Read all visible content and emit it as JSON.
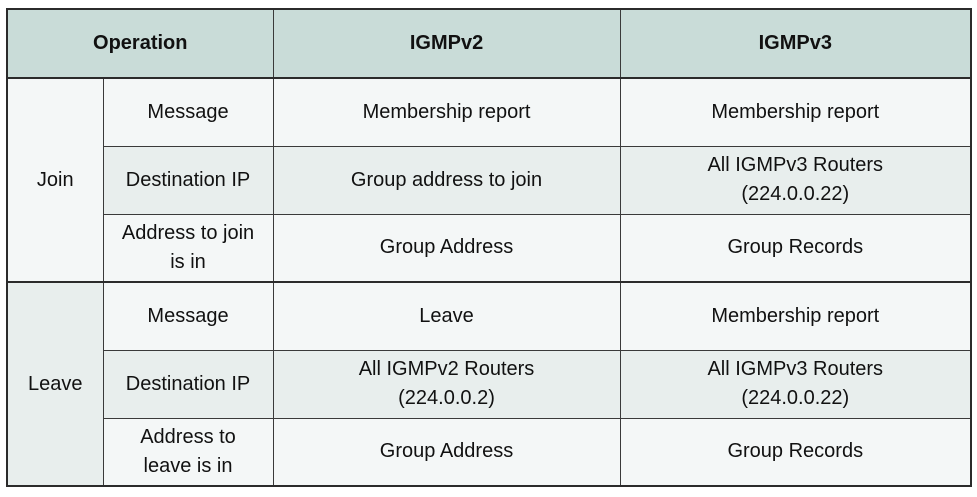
{
  "headers": {
    "operation": "Operation",
    "v2": "IGMPv2",
    "v3": "IGMPv3"
  },
  "groups": [
    {
      "operation": "Join",
      "rows": [
        {
          "field": [
            "Message"
          ],
          "v2": [
            "Membership report"
          ],
          "v3": [
            "Membership report"
          ]
        },
        {
          "field": [
            "Destination IP"
          ],
          "v2": [
            "Group address to join"
          ],
          "v3": [
            "All IGMPv3 Routers",
            "(224.0.0.22)"
          ]
        },
        {
          "field": [
            "Address to join",
            "is in"
          ],
          "v2": [
            "Group Address"
          ],
          "v3": [
            "Group Records"
          ]
        }
      ]
    },
    {
      "operation": "Leave",
      "rows": [
        {
          "field": [
            "Message"
          ],
          "v2": [
            "Leave"
          ],
          "v3": [
            "Membership report"
          ]
        },
        {
          "field": [
            "Destination IP"
          ],
          "v2": [
            "All IGMPv2 Routers",
            "(224.0.0.2)"
          ],
          "v3": [
            "All IGMPv3 Routers",
            "(224.0.0.22)"
          ]
        },
        {
          "field": [
            "Address to",
            "leave is in"
          ],
          "v2": [
            "Group Address"
          ],
          "v3": [
            "Group Records"
          ]
        }
      ]
    }
  ]
}
